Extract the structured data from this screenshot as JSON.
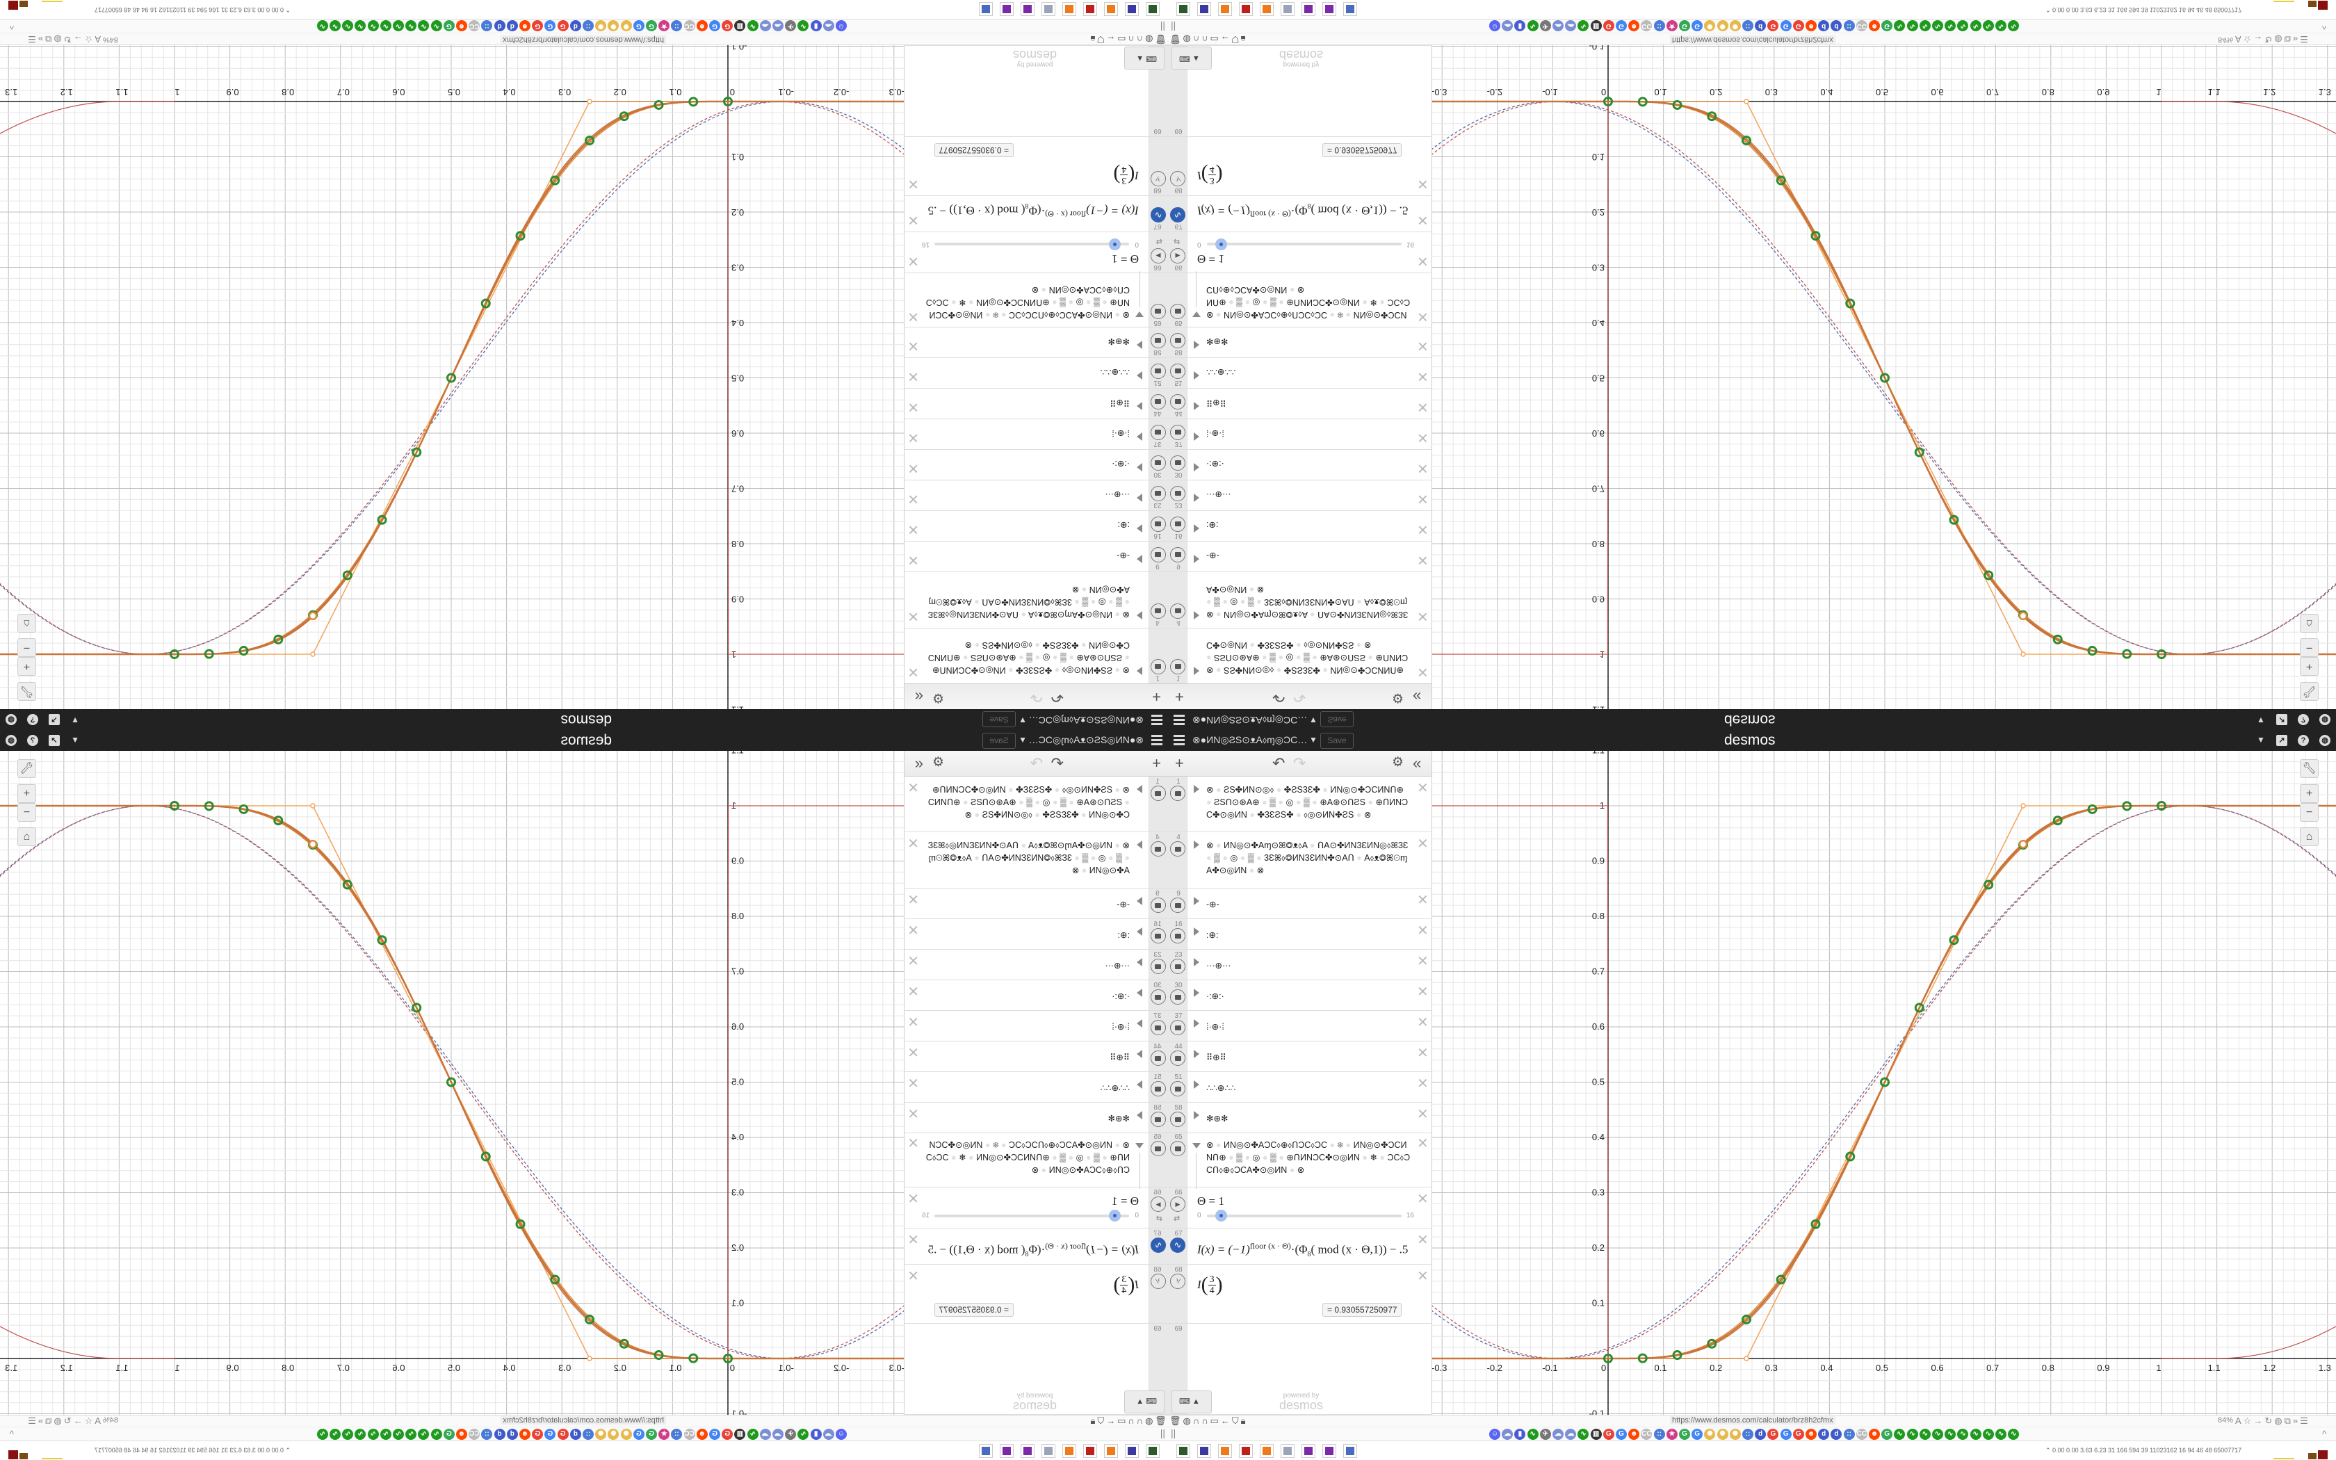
{
  "header": {
    "graph_title": "⊗●ИN◎ƧS⊙ᴥA⬨ɱ◎ƆC…",
    "save_label": "Save",
    "brand": "desmos",
    "icons": [
      "menu-icon",
      "caret-down-icon",
      "share-icon",
      "help-icon",
      "globe-icon"
    ]
  },
  "toolbar": {
    "add": "+",
    "undo": "↶",
    "redo": "↷",
    "settings": "⚙",
    "collapse": "«"
  },
  "expressions": [
    {
      "num": "1",
      "type": "folder",
      "text": "⊗●ƧS✤ИN⊙◎⬨●✤ƧS3Ɛ✤●ИN◎⊙✤ƆCИNՈ⊕●ƧSՈ⊙⊛A⊕●▒●◎●▒●⊕A⊛⊙ՈƧS●⊕ՈИNƆC✤⊙◎ИN●✤3ƐƧS✤●⬨◎⊙ИN✤ƧS●⊗"
    },
    {
      "num": "4",
      "type": "folder",
      "text": "⊗●ИN◎⊙✤Aɱ⊙ꕤ◎ᴥ⬨A●ՈA⊙✤ИN3ƐИN◎⬨ꕤ3Ɛ●▒●◎●▒●3Ɛꕤ⬨◎ИN3ƐИN✤⊙AՈ●A⬨ᴥ◎ꕤ⊙ɱA✤⊙◎ИN●⊗"
    },
    {
      "num": "9",
      "type": "folder",
      "text": "-⊕-"
    },
    {
      "num": "16",
      "type": "folder",
      "text": ":⊕:"
    },
    {
      "num": "23",
      "type": "folder",
      "text": "···⊕···"
    },
    {
      "num": "30",
      "type": "folder",
      "text": "·:⊕:·"
    },
    {
      "num": "37",
      "type": "folder",
      "text": "⁞·⊕·⁞"
    },
    {
      "num": "44",
      "type": "folder",
      "text": "⠿⊕⠿"
    },
    {
      "num": "51",
      "type": "folder",
      "text": "∴∴⊕∴∴"
    },
    {
      "num": "58",
      "type": "folder",
      "text": "✻⊕✻"
    },
    {
      "num": "65",
      "type": "folder-open",
      "text": "⊗●ИN◎⊙✤AƆC⬨⊕⬨ՈƆC⬨ƆC●❄●ИN◎⊙✤ƆCИNՈ⊕●▒●◎●▒●⊕ՈИNƆC✤⊙◎ИN●❄●ƆC⬨ƆCՈ⬨⊕⬨ƆCA✤⊙◎ИN●⊗"
    },
    {
      "num": "66",
      "type": "slider",
      "text": "Θ = 1",
      "min": "0",
      "max": "16",
      "value": 1
    },
    {
      "num": "67",
      "type": "formula",
      "lhs": "I(x) = (−1)",
      "exp": "floor (x · Θ)",
      "rhs": "·(Φ",
      "sub": "8",
      "rest": "( mod (x · Θ,1)) − .5"
    },
    {
      "num": "68",
      "type": "eval",
      "fn": "I",
      "numer": "3",
      "denom": "4",
      "result": "=  0.930557250977"
    },
    {
      "num": "69",
      "type": "empty"
    }
  ],
  "powered_by": "powered by",
  "powered_brand": "desmos",
  "graph": {
    "x_range": [
      -0.318,
      1.315
    ],
    "y_range": [
      -0.1,
      1.1
    ],
    "grid": true,
    "x_ticks": [
      "-0.3",
      "-0.2",
      "-0.1",
      "0",
      "0.1",
      "0.2",
      "0.3",
      "0.4",
      "0.5",
      "0.6",
      "0.7",
      "0.8",
      "0.9",
      "1",
      "1.1",
      "1.2",
      "1.3"
    ],
    "y_ticks": [
      "-0.1",
      "0.1",
      "0.2",
      "0.3",
      "0.4",
      "0.5",
      "0.6",
      "0.7",
      "0.8",
      "0.9",
      "1",
      "1.1"
    ],
    "sample_points_x": [
      0,
      0.0625,
      0.125,
      0.1875,
      0.25,
      0.3125,
      0.375,
      0.4375,
      0.5,
      0.5625,
      0.625,
      0.6875,
      0.75,
      0.8125,
      0.875,
      0.9375,
      1
    ],
    "eval_point": [
      0.75,
      0.930557250977
    ],
    "linear_points": [
      [
        0.25,
        0
      ],
      [
        0.75,
        1
      ]
    ],
    "colors": {
      "curve": "#c8743a",
      "curve2": "#e08a3c",
      "points": "#2e8b2e",
      "linear": "#f2a55a",
      "dash_red": "#c0504d",
      "dash_blue": "#4f6fb0",
      "axis": "#222"
    }
  },
  "graph_buttons": [
    "wrench-icon",
    "zoom-in-icon",
    "zoom-out-icon",
    "home-icon"
  ],
  "browser": {
    "url": "https://www.desmos.com/calculator/brz8h2cfmx",
    "zoom": "84%",
    "left_icons": [
      "trash-icon",
      "globe-icon",
      "headphones-icon",
      "headphones-icon",
      "folder-icon",
      "back-icon",
      "shield-icon",
      "lock-icon"
    ],
    "right_icons": [
      "translate-icon",
      "star-icon",
      "forward-icon",
      "reload-icon",
      "globe-icon",
      "extension-icon",
      "overflow-icon",
      "menu-icon"
    ],
    "bookmarks": [
      {
        "g": "☺",
        "c": "#5865f2"
      },
      {
        "g": "☁",
        "c": "#7b8fd6"
      },
      {
        "g": "▮",
        "c": "#4a5bd6"
      },
      {
        "g": "∿",
        "c": "#1f9a1f"
      },
      {
        "g": "✈",
        "c": "#777"
      },
      {
        "g": "☁",
        "c": "#7b8fd6"
      },
      {
        "g": "☁",
        "c": "#7b8fd6"
      },
      {
        "g": "∿",
        "c": "#1f9a1f"
      },
      {
        "g": "▥",
        "c": "#333"
      },
      {
        "g": "G",
        "c": "#ea4335"
      },
      {
        "g": "G",
        "c": "#4285f4"
      },
      {
        "g": "☻",
        "c": "#ff4500"
      },
      {
        "g": "CC",
        "c": "#bbb"
      },
      {
        "g": "::",
        "c": "#4a7bd6"
      },
      {
        "g": "★",
        "c": "#d23c8a"
      },
      {
        "g": "G",
        "c": "#34a853"
      },
      {
        "g": "G",
        "c": "#4285f4"
      },
      {
        "g": "✺",
        "c": "#e8b84a"
      },
      {
        "g": "✺",
        "c": "#e8b84a"
      },
      {
        "g": "✺",
        "c": "#e8b84a"
      },
      {
        "g": "::",
        "c": "#4a7bd6"
      },
      {
        "g": "d",
        "c": "#3f5bc9"
      },
      {
        "g": "G",
        "c": "#ea4335"
      },
      {
        "g": "G",
        "c": "#4285f4"
      },
      {
        "g": "G",
        "c": "#ea4335"
      },
      {
        "g": "☻",
        "c": "#ff4500"
      },
      {
        "g": "d",
        "c": "#3f5bc9"
      },
      {
        "g": "d",
        "c": "#3f5bc9"
      },
      {
        "g": "::",
        "c": "#4a7bd6"
      },
      {
        "g": "CC",
        "c": "#bbb"
      },
      {
        "g": "☻",
        "c": "#ff4500"
      },
      {
        "g": "G",
        "c": "#34a853"
      },
      {
        "g": "∿",
        "c": "#1f9a1f"
      },
      {
        "g": "∿",
        "c": "#1f9a1f"
      },
      {
        "g": "∿",
        "c": "#1f9a1f"
      },
      {
        "g": "∿",
        "c": "#1f9a1f"
      },
      {
        "g": "∿",
        "c": "#1f9a1f"
      },
      {
        "g": "∿",
        "c": "#1f9a1f"
      },
      {
        "g": "∿",
        "c": "#1f9a1f"
      },
      {
        "g": "∿",
        "c": "#1f9a1f"
      },
      {
        "g": "∿",
        "c": "#1f9a1f"
      },
      {
        "g": "∿",
        "c": "#1f9a1f"
      }
    ]
  },
  "taskbar": {
    "apps": [
      {
        "c": "#2d5a2d"
      },
      {
        "c": "#3a3aa0"
      },
      {
        "c": "#f07a1a"
      },
      {
        "c": "#c0201c"
      },
      {
        "c": "#f07a1a"
      },
      {
        "c": "#9aa4b8"
      },
      {
        "c": "#7a2aa8"
      },
      {
        "c": "#7a2aa8"
      },
      {
        "c": "#4a6ac0"
      }
    ],
    "tray": "⌃  0.00 0.00 3.63 6.23  31  166  594  39  11023162  16  94  46  48  65007717"
  }
}
